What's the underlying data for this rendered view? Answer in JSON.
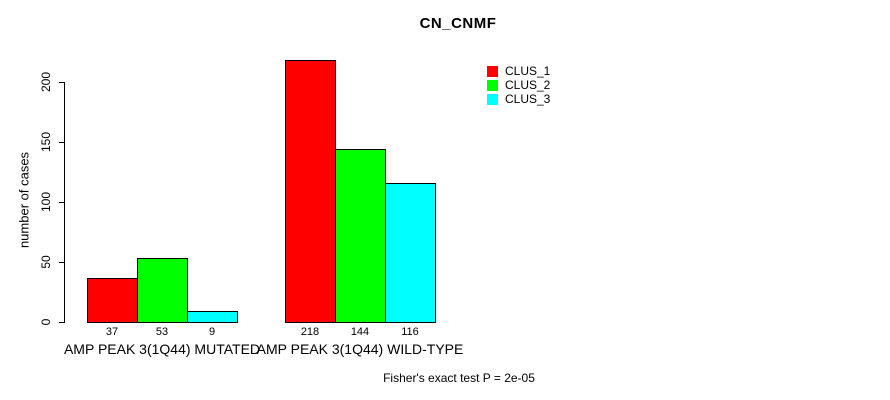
{
  "chart_data": {
    "type": "bar",
    "title": "CN_CNMF",
    "xlabel": "",
    "ylabel": "number of cases",
    "categories": [
      "AMP PEAK 3(1Q44) MUTATED",
      "AMP PEAK 3(1Q44) WILD-TYPE"
    ],
    "series": [
      {
        "name": "CLUS_1",
        "color": "#ff0000",
        "values": [
          37,
          218
        ]
      },
      {
        "name": "CLUS_2",
        "color": "#00ff00",
        "values": [
          53,
          144
        ]
      },
      {
        "name": "CLUS_3",
        "color": "#00ffff",
        "values": [
          9,
          116
        ]
      }
    ],
    "bar_value_labels": [
      [
        "37",
        "53",
        "9"
      ],
      [
        "218",
        "144",
        "116"
      ]
    ],
    "yticks": [
      0,
      50,
      100,
      150,
      200
    ],
    "ylim": [
      0,
      220
    ],
    "grid": false,
    "legend_position": "top-right",
    "annotation": "Fisher's exact test P = 2e-05"
  },
  "legend": {
    "items": [
      {
        "label": "CLUS_1",
        "color": "#ff0000"
      },
      {
        "label": "CLUS_2",
        "color": "#00ff00"
      },
      {
        "label": "CLUS_3",
        "color": "#00ffff"
      }
    ]
  }
}
